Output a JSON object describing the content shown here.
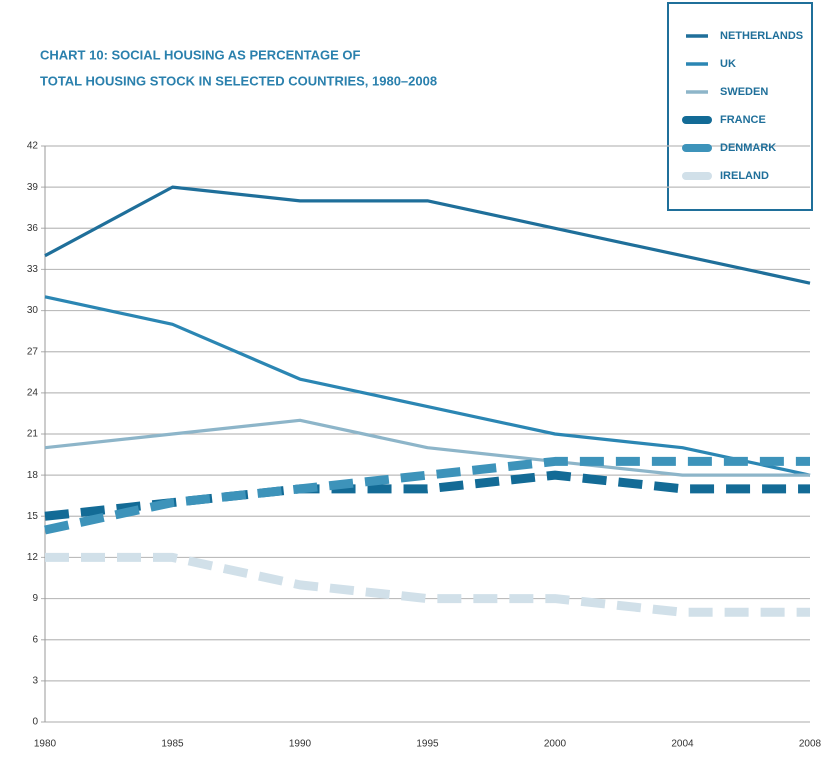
{
  "chart_data": {
    "type": "line",
    "title": [
      "CHART 10: SOCIAL HOUSING AS PERCENTAGE OF",
      "TOTAL HOUSING STOCK IN SELECTED COUNTRIES, 1980–2008"
    ],
    "categories": [
      "1980",
      "1985",
      "1990",
      "1995",
      "2000",
      "2004",
      "2008"
    ],
    "series": [
      {
        "name": "NETHERLANDS",
        "color": "#1f6f9a",
        "dashed": false,
        "values": [
          34,
          39,
          38,
          38,
          36,
          34,
          32
        ]
      },
      {
        "name": "UK",
        "color": "#2b86b3",
        "dashed": false,
        "values": [
          31,
          29,
          25,
          23,
          21,
          20,
          18
        ]
      },
      {
        "name": "SWEDEN",
        "color": "#8db5c9",
        "dashed": false,
        "values": [
          20,
          21,
          22,
          20,
          19,
          18,
          18
        ]
      },
      {
        "name": "FRANCE",
        "color": "#136b96",
        "dashed": true,
        "values": [
          15,
          16,
          17,
          17,
          18,
          17,
          17
        ]
      },
      {
        "name": "DENMARK",
        "color": "#3d93ba",
        "dashed": true,
        "values": [
          14,
          16,
          17,
          18,
          19,
          19,
          19
        ]
      },
      {
        "name": "IRELAND",
        "color": "#d1e0e9",
        "dashed": true,
        "values": [
          12,
          12,
          10,
          9,
          9,
          8,
          8
        ]
      }
    ],
    "ylim": [
      0,
      42
    ],
    "yticks": [
      0,
      3,
      6,
      9,
      12,
      15,
      18,
      21,
      24,
      27,
      30,
      33,
      36,
      39,
      42
    ],
    "grid": true
  }
}
